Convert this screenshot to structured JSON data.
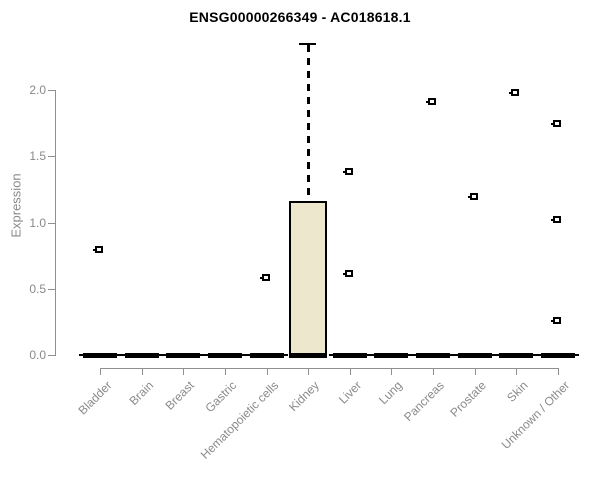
{
  "title": "ENSG00000266349 - AC018618.1",
  "chart_data": {
    "type": "boxplot",
    "title": "ENSG00000266349 - AC018618.1",
    "xlabel": "",
    "ylabel": "Expression",
    "ylim": [
      0,
      2.35
    ],
    "yticks": [
      0.0,
      0.5,
      1.0,
      1.5,
      2.0
    ],
    "grid": false,
    "legend": false,
    "categories": [
      "Bladder",
      "Brain",
      "Breast",
      "Gastric",
      "Hematopoietic cells",
      "Kidney",
      "Liver",
      "Lung",
      "Pancreas",
      "Prostate",
      "Skin",
      "Unknown / Other"
    ],
    "boxes": [
      {
        "category": "Bladder",
        "min": 0,
        "q1": 0,
        "median": 0,
        "q3": 0,
        "max": 0,
        "outliers": [
          0.79
        ]
      },
      {
        "category": "Brain",
        "min": 0,
        "q1": 0,
        "median": 0,
        "q3": 0,
        "max": 0,
        "outliers": []
      },
      {
        "category": "Breast",
        "min": 0,
        "q1": 0,
        "median": 0,
        "q3": 0,
        "max": 0,
        "outliers": []
      },
      {
        "category": "Gastric",
        "min": 0,
        "q1": 0,
        "median": 0,
        "q3": 0,
        "max": 0,
        "outliers": []
      },
      {
        "category": "Hematopoietic cells",
        "min": 0,
        "q1": 0,
        "median": 0,
        "q3": 0,
        "max": 0,
        "outliers": [
          0.58
        ]
      },
      {
        "category": "Kidney",
        "min": 0,
        "q1": 0,
        "median": 0,
        "q3": 1.15,
        "max": 2.35,
        "outliers": []
      },
      {
        "category": "Liver",
        "min": 0,
        "q1": 0,
        "median": 0,
        "q3": 0,
        "max": 0,
        "outliers": [
          1.38,
          0.61
        ]
      },
      {
        "category": "Lung",
        "min": 0,
        "q1": 0,
        "median": 0,
        "q3": 0,
        "max": 0,
        "outliers": []
      },
      {
        "category": "Pancreas",
        "min": 0,
        "q1": 0,
        "median": 0,
        "q3": 0,
        "max": 0,
        "outliers": [
          1.91
        ]
      },
      {
        "category": "Prostate",
        "min": 0,
        "q1": 0,
        "median": 0,
        "q3": 0,
        "max": 0,
        "outliers": [
          1.19
        ]
      },
      {
        "category": "Skin",
        "min": 0,
        "q1": 0,
        "median": 0,
        "q3": 0,
        "max": 0,
        "outliers": [
          1.98
        ]
      },
      {
        "category": "Unknown / Other",
        "min": 0,
        "q1": 0,
        "median": 0,
        "q3": 0,
        "max": 0,
        "outliers": [
          1.74,
          1.02,
          0.26
        ]
      }
    ],
    "colors": {
      "box_fill": "#ece7cd",
      "box_border": "#000000",
      "axis_line": "#909090",
      "axis_text": "#8a8a8a",
      "title_text": "#000000",
      "outlier": "#000000"
    }
  }
}
